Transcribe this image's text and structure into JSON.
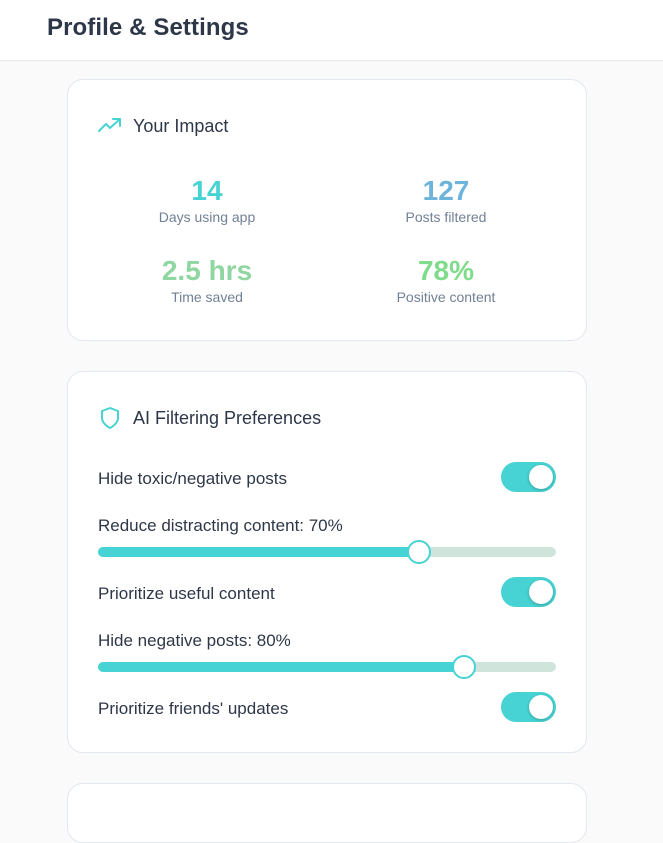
{
  "header": {
    "title": "Profile & Settings"
  },
  "impact": {
    "title": "Your Impact",
    "icon": "trending-up-icon",
    "stats": [
      {
        "value": "14",
        "label": "Days using app"
      },
      {
        "value": "127",
        "label": "Posts filtered"
      },
      {
        "value": "2.5 hrs",
        "label": "Time saved"
      },
      {
        "value": "78%",
        "label": "Positive content"
      }
    ]
  },
  "filtering": {
    "title": "AI Filtering Preferences",
    "icon": "shield-icon",
    "toggles": [
      {
        "label": "Hide toxic/negative posts",
        "on": true
      },
      {
        "label": "Prioritize useful content",
        "on": true
      },
      {
        "label": "Prioritize friends' updates",
        "on": true
      }
    ],
    "sliders": [
      {
        "label": "Reduce distracting content: 70%",
        "value": 0.7
      },
      {
        "label": "Hide negative posts: 80%",
        "value": 0.8
      }
    ]
  },
  "colors": {
    "accent": "#47d3d3",
    "stat_blue": "#6cb4dc",
    "stat_green": "#8fd6a0",
    "slider_track": "#cfe5dc"
  }
}
